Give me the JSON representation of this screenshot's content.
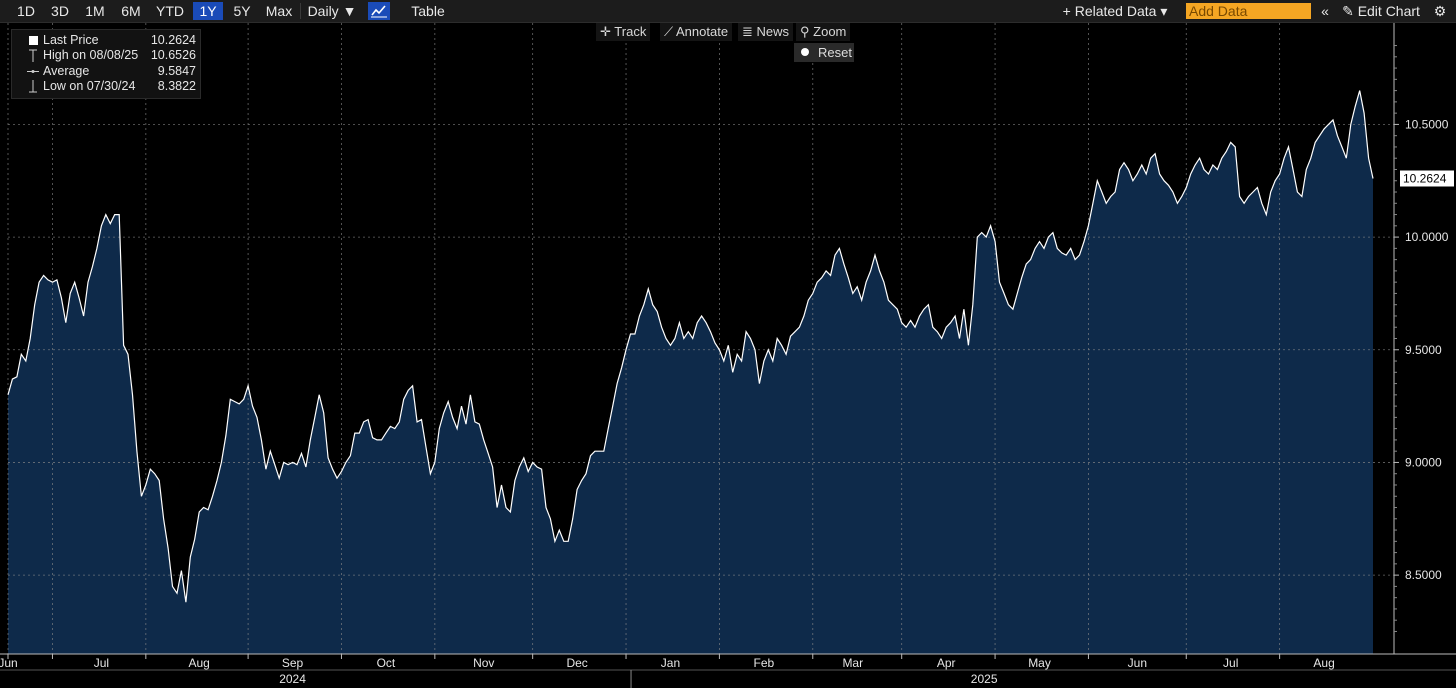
{
  "toolbar": {
    "ranges": [
      "1D",
      "3D",
      "1M",
      "6M",
      "YTD",
      "1Y",
      "5Y",
      "Max"
    ],
    "active_range": "1Y",
    "frequency": "Daily ▼",
    "chart_icon": "line-chart-icon",
    "table_label": "Table",
    "related_data": "+ Related Data ▾",
    "add_data_placeholder": "Add Data",
    "collapse_icon": "double-chevron-left-icon",
    "edit_chart": "Edit Chart",
    "settings_icon": "gear-icon"
  },
  "chart_tools": {
    "track": "Track",
    "annotate": "Annotate",
    "news": "News",
    "zoom": "Zoom",
    "reset": "Reset"
  },
  "legend": {
    "last_label": "Last Price",
    "last_value": "10.2624",
    "high_label": "High on 08/08/25",
    "high_value": "10.6526",
    "avg_label": "Average",
    "avg_value": "9.5847",
    "low_label": "Low on 07/30/24",
    "low_value": "8.3822"
  },
  "colors": {
    "area": "#0e2a4a",
    "line": "#ffffff",
    "active": "#1a4bb8",
    "add_data": "#f5a623"
  },
  "chart_data": {
    "type": "area",
    "title": "",
    "xlabel": "",
    "ylabel": "",
    "ylim": [
      8.15,
      10.95
    ],
    "ytick_labels": [
      "8.5000",
      "9.0000",
      "9.5000",
      "10.0000",
      "10.5000"
    ],
    "yticks": [
      8.5,
      9.0,
      9.5,
      10.0,
      10.5
    ],
    "x_month_labels": [
      "Jun",
      "Jul",
      "Aug",
      "Sep",
      "Oct",
      "Nov",
      "Dec",
      "Jan",
      "Feb",
      "Mar",
      "Apr",
      "May",
      "Jun",
      "Jul",
      "Aug"
    ],
    "x_month_index": [
      0,
      21,
      43,
      64,
      85,
      107,
      128,
      149,
      170,
      190,
      211,
      232,
      254,
      275,
      296
    ],
    "x_year_labels": [
      "2024",
      "2025"
    ],
    "x_year_index": [
      64,
      211
    ],
    "last_value_label": "10.2624",
    "grid": true,
    "values": [
      9.3,
      9.37,
      9.38,
      9.48,
      9.45,
      9.55,
      9.7,
      9.8,
      9.83,
      9.81,
      9.8,
      9.81,
      9.73,
      9.62,
      9.75,
      9.8,
      9.73,
      9.65,
      9.8,
      9.87,
      9.95,
      10.05,
      10.1,
      10.06,
      10.1,
      10.1,
      9.52,
      9.48,
      9.3,
      9.05,
      8.85,
      8.9,
      8.97,
      8.95,
      8.92,
      8.75,
      8.62,
      8.45,
      8.42,
      8.52,
      8.38,
      8.58,
      8.66,
      8.78,
      8.8,
      8.79,
      8.85,
      8.92,
      9.0,
      9.12,
      9.28,
      9.27,
      9.26,
      9.28,
      9.34,
      9.25,
      9.2,
      9.1,
      8.97,
      9.05,
      8.99,
      8.93,
      9.0,
      8.99,
      9.0,
      8.99,
      9.04,
      8.98,
      9.1,
      9.2,
      9.3,
      9.22,
      9.02,
      8.97,
      8.93,
      8.96,
      9.0,
      9.03,
      9.13,
      9.13,
      9.18,
      9.19,
      9.11,
      9.1,
      9.1,
      9.13,
      9.16,
      9.15,
      9.18,
      9.28,
      9.32,
      9.34,
      9.18,
      9.19,
      9.07,
      8.95,
      9.0,
      9.15,
      9.22,
      9.27,
      9.2,
      9.15,
      9.25,
      9.17,
      9.3,
      9.18,
      9.17,
      9.1,
      9.04,
      8.98,
      8.8,
      8.9,
      8.8,
      8.78,
      8.92,
      8.98,
      9.02,
      8.96,
      9.0,
      8.98,
      8.97,
      8.8,
      8.75,
      8.65,
      8.7,
      8.65,
      8.65,
      8.75,
      8.88,
      8.92,
      8.95,
      9.03,
      9.05,
      9.05,
      9.05,
      9.15,
      9.25,
      9.35,
      9.42,
      9.5,
      9.57,
      9.57,
      9.65,
      9.7,
      9.77,
      9.7,
      9.67,
      9.6,
      9.55,
      9.52,
      9.55,
      9.62,
      9.55,
      9.58,
      9.55,
      9.62,
      9.65,
      9.62,
      9.58,
      9.53,
      9.5,
      9.45,
      9.52,
      9.4,
      9.48,
      9.45,
      9.58,
      9.55,
      9.5,
      9.35,
      9.45,
      9.5,
      9.45,
      9.55,
      9.52,
      9.48,
      9.56,
      9.58,
      9.6,
      9.65,
      9.72,
      9.75,
      9.8,
      9.82,
      9.85,
      9.83,
      9.92,
      9.95,
      9.88,
      9.82,
      9.75,
      9.78,
      9.72,
      9.8,
      9.85,
      9.92,
      9.85,
      9.8,
      9.72,
      9.7,
      9.68,
      9.62,
      9.6,
      9.63,
      9.6,
      9.65,
      9.68,
      9.7,
      9.6,
      9.58,
      9.55,
      9.6,
      9.62,
      9.65,
      9.55,
      9.68,
      9.52,
      9.7,
      10.0,
      10.02,
      10.0,
      10.05,
      9.98,
      9.8,
      9.75,
      9.7,
      9.68,
      9.75,
      9.82,
      9.88,
      9.9,
      9.95,
      9.98,
      9.95,
      10.0,
      10.02,
      9.95,
      9.93,
      9.92,
      9.95,
      9.9,
      9.92,
      9.98,
      10.05,
      10.15,
      10.25,
      10.2,
      10.15,
      10.18,
      10.2,
      10.3,
      10.33,
      10.3,
      10.25,
      10.28,
      10.32,
      10.28,
      10.35,
      10.37,
      10.28,
      10.25,
      10.23,
      10.2,
      10.15,
      10.18,
      10.22,
      10.28,
      10.32,
      10.35,
      10.3,
      10.28,
      10.32,
      10.3,
      10.35,
      10.38,
      10.42,
      10.4,
      10.18,
      10.15,
      10.18,
      10.2,
      10.22,
      10.15,
      10.1,
      10.2,
      10.25,
      10.28,
      10.35,
      10.4,
      10.3,
      10.2,
      10.18,
      10.3,
      10.35,
      10.42,
      10.45,
      10.48,
      10.5,
      10.52,
      10.45,
      10.4,
      10.35,
      10.5,
      10.58,
      10.65,
      10.55,
      10.35,
      10.26
    ]
  }
}
